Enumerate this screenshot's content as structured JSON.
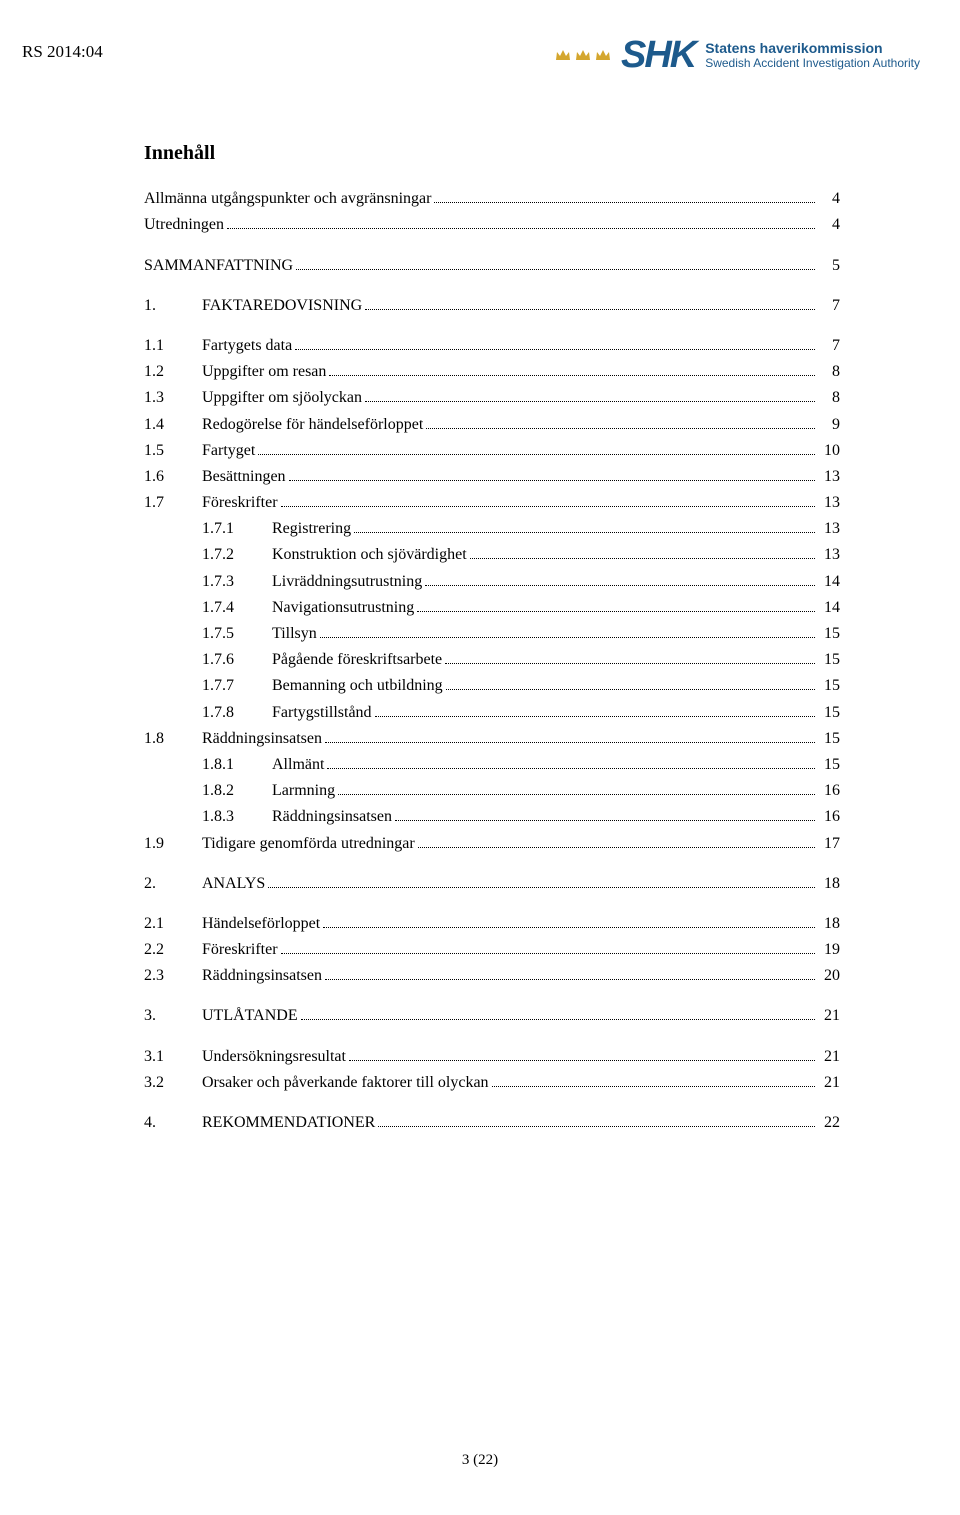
{
  "doc_id": "RS 2014:04",
  "logo": {
    "shk": "SHK",
    "agency_sv": "Statens haverikommission",
    "agency_en": "Swedish Accident Investigation Authority",
    "crown_color": "#d4a62e",
    "brand_color": "#1d5a8c"
  },
  "toc_title": "Innehåll",
  "toc": [
    {
      "lvl": 0,
      "num": "",
      "label": "Allmänna utgångspunkter och avgränsningar",
      "page": "4",
      "gap_before": false
    },
    {
      "lvl": 0,
      "num": "",
      "label": "Utredningen",
      "page": "4",
      "gap_before": false
    },
    {
      "lvl": 0,
      "num": "",
      "label": "SAMMANFATTNING",
      "page": "5",
      "gap_before": true
    },
    {
      "lvl": 1,
      "num": "1.",
      "label": "FAKTAREDOVISNING",
      "page": "7",
      "gap_before": true
    },
    {
      "lvl": 1,
      "num": "1.1",
      "label": "Fartygets data",
      "page": "7",
      "gap_before": true
    },
    {
      "lvl": 1,
      "num": "1.2",
      "label": "Uppgifter om resan",
      "page": "8",
      "gap_before": false
    },
    {
      "lvl": 1,
      "num": "1.3",
      "label": "Uppgifter om sjöolyckan",
      "page": "8",
      "gap_before": false
    },
    {
      "lvl": 1,
      "num": "1.4",
      "label": "Redogörelse för händelseförloppet",
      "page": "9",
      "gap_before": false
    },
    {
      "lvl": 1,
      "num": "1.5",
      "label": "Fartyget",
      "page": "10",
      "gap_before": false
    },
    {
      "lvl": 1,
      "num": "1.6",
      "label": "Besättningen",
      "page": "13",
      "gap_before": false
    },
    {
      "lvl": 1,
      "num": "1.7",
      "label": "Föreskrifter",
      "page": "13",
      "gap_before": false
    },
    {
      "lvl": 2,
      "num": "1.7.1",
      "label": "Registrering",
      "page": "13",
      "gap_before": false
    },
    {
      "lvl": 2,
      "num": "1.7.2",
      "label": "Konstruktion och sjövärdighet",
      "page": "13",
      "gap_before": false
    },
    {
      "lvl": 2,
      "num": "1.7.3",
      "label": "Livräddningsutrustning",
      "page": "14",
      "gap_before": false
    },
    {
      "lvl": 2,
      "num": "1.7.4",
      "label": "Navigationsutrustning",
      "page": "14",
      "gap_before": false
    },
    {
      "lvl": 2,
      "num": "1.7.5",
      "label": "Tillsyn",
      "page": "15",
      "gap_before": false
    },
    {
      "lvl": 2,
      "num": "1.7.6",
      "label": "Pågående föreskriftsarbete",
      "page": "15",
      "gap_before": false
    },
    {
      "lvl": 2,
      "num": "1.7.7",
      "label": "Bemanning och utbildning",
      "page": "15",
      "gap_before": false
    },
    {
      "lvl": 2,
      "num": "1.7.8",
      "label": "Fartygstillstånd",
      "page": "15",
      "gap_before": false
    },
    {
      "lvl": 1,
      "num": "1.8",
      "label": "Räddningsinsatsen",
      "page": "15",
      "gap_before": false
    },
    {
      "lvl": 2,
      "num": "1.8.1",
      "label": "Allmänt",
      "page": "15",
      "gap_before": false
    },
    {
      "lvl": 2,
      "num": "1.8.2",
      "label": "Larmning",
      "page": "16",
      "gap_before": false
    },
    {
      "lvl": 2,
      "num": "1.8.3",
      "label": "Räddningsinsatsen",
      "page": "16",
      "gap_before": false
    },
    {
      "lvl": 1,
      "num": "1.9",
      "label": "Tidigare genomförda utredningar",
      "page": "17",
      "gap_before": false
    },
    {
      "lvl": 1,
      "num": "2.",
      "label": "ANALYS",
      "page": "18",
      "gap_before": true
    },
    {
      "lvl": 1,
      "num": "2.1",
      "label": "Händelseförloppet",
      "page": "18",
      "gap_before": true
    },
    {
      "lvl": 1,
      "num": "2.2",
      "label": "Föreskrifter",
      "page": "19",
      "gap_before": false
    },
    {
      "lvl": 1,
      "num": "2.3",
      "label": "Räddningsinsatsen",
      "page": "20",
      "gap_before": false
    },
    {
      "lvl": 1,
      "num": "3.",
      "label": "UTLÅTANDE",
      "page": "21",
      "gap_before": true
    },
    {
      "lvl": 1,
      "num": "3.1",
      "label": "Undersökningsresultat",
      "page": "21",
      "gap_before": true
    },
    {
      "lvl": 1,
      "num": "3.2",
      "label": "Orsaker och påverkande faktorer till olyckan",
      "page": "21",
      "gap_before": false
    },
    {
      "lvl": 1,
      "num": "4.",
      "label": "REKOMMENDATIONER",
      "page": "22",
      "gap_before": true
    }
  ],
  "footer": "3 (22)"
}
